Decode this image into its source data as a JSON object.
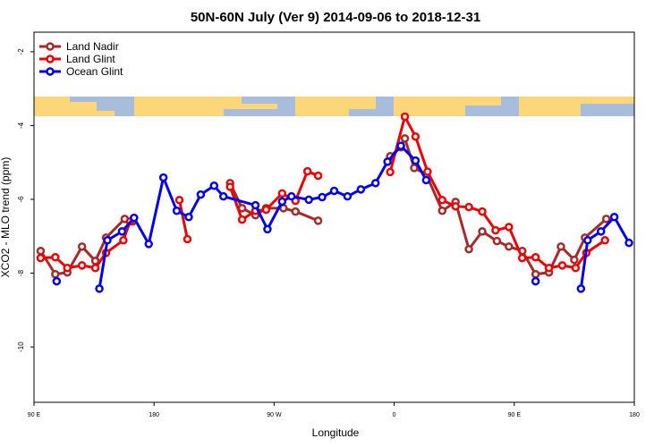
{
  "chart_data": {
    "type": "line",
    "title": "50N-60N July (Ver 9)   2014-09-06 to 2018-12-31",
    "x_label": "Longitude",
    "y_label": "XCO2 - MLO trend (ppm)",
    "xlim": [
      90,
      540
    ],
    "ylim": [
      -11.5,
      -1.47
    ],
    "xticks": [
      {
        "value": 90,
        "label": "90 E"
      },
      {
        "value": 180,
        "label": "180"
      },
      {
        "value": 270,
        "label": "90 W"
      },
      {
        "value": 360,
        "label": "0"
      },
      {
        "value": 450,
        "label": "90 E"
      },
      {
        "value": 540,
        "label": "180"
      }
    ],
    "yticks": [
      -2,
      -4,
      -6,
      -8,
      -10
    ],
    "legend": "top-left",
    "series": [
      {
        "name": "Land Nadir",
        "color": "#a52a2a",
        "x": [
          95,
          106,
          115,
          126,
          136,
          144,
          158,
          164,
          null,
          237,
          246,
          256,
          264,
          277,
          286,
          303,
          null,
          357,
          365,
          368,
          375,
          384,
          396,
          406,
          416,
          426,
          437,
          446,
          456,
          466,
          476,
          485,
          495,
          503,
          519
        ],
        "values": [
          -7.4,
          -8.03,
          -7.98,
          -7.28,
          -7.67,
          -7.04,
          -6.53,
          -6.6,
          null,
          -5.56,
          -6.24,
          -6.43,
          -6.24,
          -6.24,
          -6.33,
          -6.58,
          null,
          -4.83,
          -4.59,
          -4.35,
          -5.15,
          -5.32,
          -6.31,
          -6.07,
          -7.35,
          -6.87,
          -7.13,
          -7.28,
          -7.4,
          -8.03,
          -7.98,
          -7.28,
          -7.64,
          -7.04,
          -6.53
        ]
      },
      {
        "name": "Land Glint",
        "color": "#ee0000",
        "x": [
          95,
          106,
          115,
          126,
          136,
          144,
          157,
          162,
          null,
          199,
          205,
          null,
          237,
          246,
          256,
          264,
          276,
          286,
          295,
          303,
          null,
          357,
          368,
          376,
          385,
          396,
          406,
          416,
          426,
          436,
          446,
          456,
          466,
          476,
          486,
          496,
          504,
          518
        ],
        "values": [
          -7.59,
          -7.57,
          -7.86,
          -7.79,
          -7.86,
          -7.45,
          -7.11,
          -6.6,
          null,
          -6.02,
          -7.08,
          null,
          -5.66,
          -6.55,
          -6.31,
          -6.28,
          -5.84,
          -6.04,
          -5.24,
          -5.36,
          null,
          -5.26,
          -3.76,
          -4.3,
          -5.25,
          -6.02,
          -6.19,
          -6.21,
          -6.33,
          -6.84,
          -6.75,
          -7.59,
          -7.57,
          -7.86,
          -7.79,
          -7.86,
          -7.45,
          -7.11
        ]
      },
      {
        "name": "Ocean Glint",
        "color": "#0000ee",
        "x": [
          107,
          null,
          139,
          145,
          156,
          165,
          176,
          187,
          197,
          206,
          215,
          225,
          232,
          256,
          265,
          276,
          283,
          296,
          306,
          315,
          325,
          335,
          346,
          355,
          365,
          376,
          384,
          null,
          466,
          null,
          500,
          505,
          515,
          525,
          536
        ],
        "values": [
          -8.22,
          null,
          -8.42,
          -7.11,
          -6.87,
          -6.5,
          -7.21,
          -5.41,
          -6.31,
          -6.48,
          -5.87,
          -5.63,
          -5.92,
          -6.16,
          -6.81,
          -6.06,
          -5.92,
          -6.01,
          -5.94,
          -5.77,
          -5.92,
          -5.73,
          -5.56,
          -4.98,
          -4.55,
          -4.95,
          -5.48,
          null,
          -8.22,
          null,
          -8.42,
          -7.11,
          -6.87,
          -6.48,
          -7.18
        ]
      }
    ]
  }
}
